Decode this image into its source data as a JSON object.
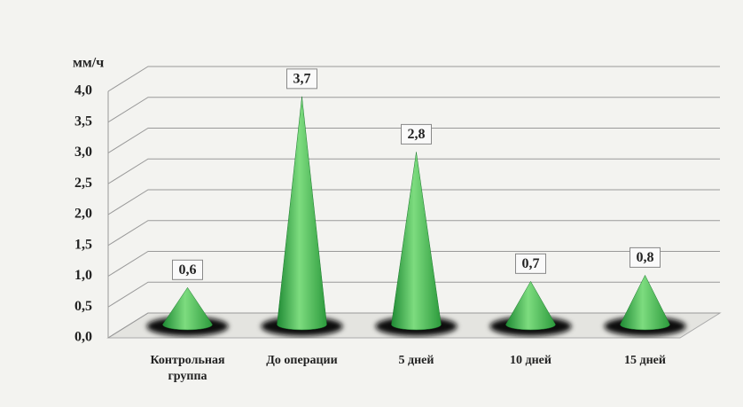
{
  "chart_data": {
    "type": "cone",
    "y_axis_label": "мм/ч",
    "categories": [
      "Контрольная группа",
      "До операции",
      "5 дней",
      "10 дней",
      "15 дней"
    ],
    "values": [
      0.6,
      3.7,
      2.8,
      0.7,
      0.8
    ],
    "value_labels": [
      "0,6",
      "3,7",
      "2,8",
      "0,7",
      "0,8"
    ],
    "color": "#3cb54a",
    "ylim": [
      0,
      4
    ],
    "yticks": [
      {
        "value": 0,
        "label": "0,0"
      },
      {
        "value": 0.5,
        "label": "0,5"
      },
      {
        "value": 1,
        "label": "1,0"
      },
      {
        "value": 1.5,
        "label": "1,5"
      },
      {
        "value": 2,
        "label": "2,0"
      },
      {
        "value": 2.5,
        "label": "2,5"
      },
      {
        "value": 3,
        "label": "3,0"
      },
      {
        "value": 3.5,
        "label": "3,5"
      },
      {
        "value": 4,
        "label": "4,0"
      }
    ],
    "grid": true
  }
}
